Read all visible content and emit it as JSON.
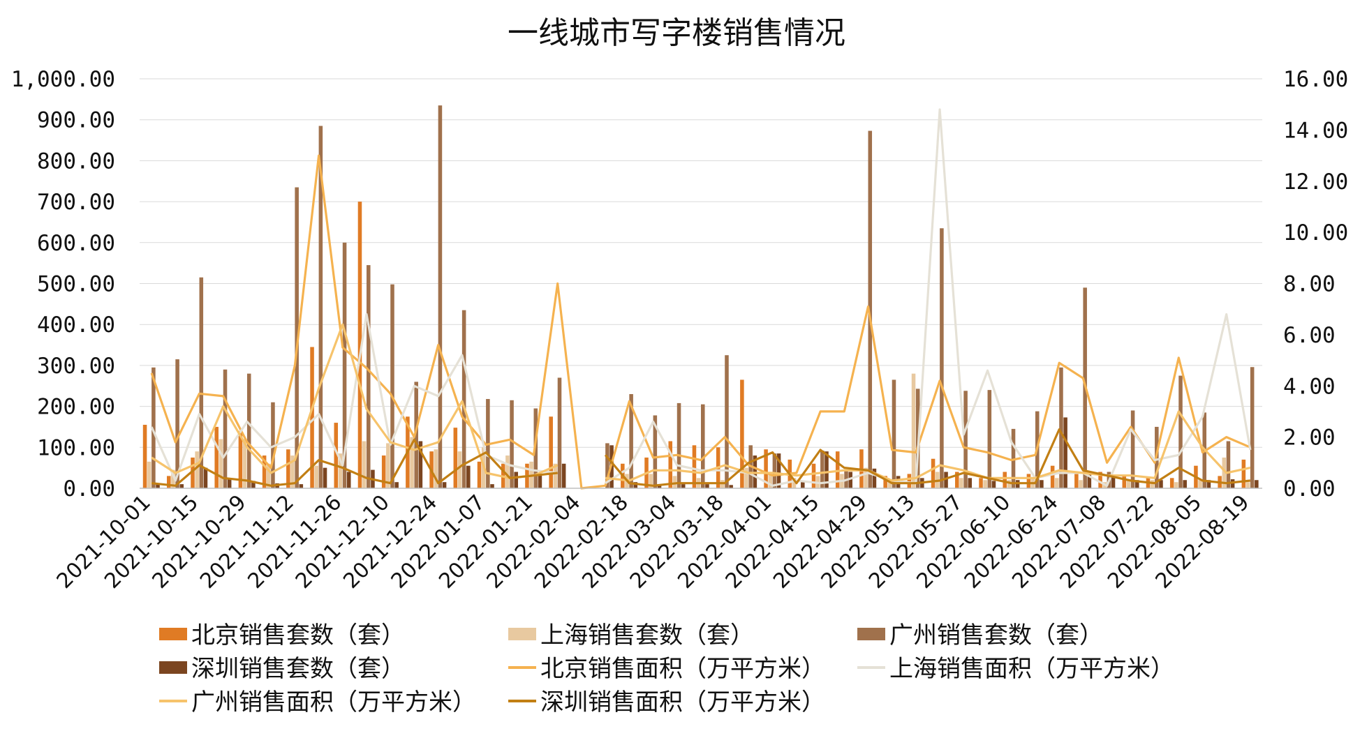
{
  "chart_data": {
    "type": "bar",
    "title": "一线城市写字楼销售情况",
    "dates": [
      "2021-10-01",
      "2021-10-08",
      "2021-10-15",
      "2021-10-22",
      "2021-10-29",
      "2021-11-05",
      "2021-11-12",
      "2021-11-19",
      "2021-11-26",
      "2021-12-03",
      "2021-12-10",
      "2021-12-17",
      "2021-12-24",
      "2021-12-31",
      "2022-01-07",
      "2022-01-14",
      "2022-01-21",
      "2022-01-28",
      "2022-02-04",
      "2022-02-11",
      "2022-02-18",
      "2022-02-25",
      "2022-03-04",
      "2022-03-11",
      "2022-03-18",
      "2022-03-25",
      "2022-04-01",
      "2022-04-08",
      "2022-04-15",
      "2022-04-22",
      "2022-04-29",
      "2022-05-06",
      "2022-05-13",
      "2022-05-20",
      "2022-05-27",
      "2022-06-03",
      "2022-06-10",
      "2022-06-17",
      "2022-06-24",
      "2022-07-01",
      "2022-07-08",
      "2022-07-15",
      "2022-07-22",
      "2022-07-29",
      "2022-08-05",
      "2022-08-12",
      "2022-08-19"
    ],
    "x_tick_labels": [
      "2021-10-01",
      "2021-10-15",
      "2021-10-29",
      "2021-11-12",
      "2021-11-26",
      "2021-12-10",
      "2021-12-24",
      "2022-01-07",
      "2022-01-21",
      "2022-02-04",
      "2022-02-18",
      "2022-03-04",
      "2022-03-18",
      "2022-04-01",
      "2022-04-15",
      "2022-04-29",
      "2022-05-13",
      "2022-05-27",
      "2022-06-10",
      "2022-06-24",
      "2022-07-08",
      "2022-07-22",
      "2022-08-05",
      "2022-08-19"
    ],
    "y_left": {
      "min": 0,
      "max": 1000,
      "ticks": [
        "0.00",
        "100.00",
        "200.00",
        "300.00",
        "400.00",
        "500.00",
        "600.00",
        "700.00",
        "800.00",
        "900.00",
        "1,000.00"
      ]
    },
    "y_right": {
      "min": 0,
      "max": 16,
      "ticks": [
        "0.00",
        "2.00",
        "4.00",
        "6.00",
        "8.00",
        "10.00",
        "12.00",
        "14.00",
        "16.00"
      ]
    },
    "grid": true,
    "legend_position": "bottom",
    "bar_series": [
      {
        "name": "北京销售套数（套）",
        "color": "#E07B24",
        "values": [
          155,
          30,
          75,
          150,
          140,
          80,
          95,
          345,
          160,
          700,
          80,
          175,
          90,
          148,
          65,
          60,
          60,
          175,
          null,
          null,
          60,
          75,
          115,
          105,
          100,
          265,
          95,
          70,
          60,
          90,
          95,
          30,
          35,
          72,
          40,
          25,
          40,
          35,
          55,
          40,
          40,
          30,
          25,
          25,
          55,
          30,
          70
        ]
      },
      {
        "name": "上海销售套数（套）",
        "color": "#E8C9A0",
        "values": [
          65,
          45,
          90,
          120,
          120,
          60,
          80,
          55,
          85,
          115,
          110,
          125,
          95,
          90,
          100,
          80,
          65,
          60,
          null,
          null,
          35,
          35,
          30,
          25,
          20,
          50,
          35,
          25,
          30,
          35,
          50,
          15,
          280,
          40,
          25,
          20,
          20,
          25,
          25,
          20,
          15,
          20,
          20,
          15,
          20,
          75,
          15
        ]
      },
      {
        "name": "广州销售套数（套）",
        "color": "#A0714C",
        "values": [
          295,
          315,
          515,
          290,
          280,
          210,
          735,
          885,
          600,
          545,
          498,
          260,
          935,
          435,
          218,
          215,
          195,
          270,
          null,
          110,
          230,
          178,
          208,
          205,
          325,
          105,
          85,
          0,
          92,
          43,
          873,
          265,
          243,
          635,
          238,
          240,
          145,
          188,
          295,
          490,
          40,
          190,
          150,
          275,
          185,
          115,
          296
        ]
      },
      {
        "name": "深圳销售套数（套）",
        "color": "#7B4520",
        "values": [
          12,
          10,
          50,
          25,
          18,
          12,
          10,
          50,
          40,
          45,
          15,
          115,
          15,
          55,
          10,
          40,
          35,
          60,
          null,
          105,
          15,
          10,
          10,
          10,
          8,
          80,
          85,
          15,
          90,
          40,
          48,
          30,
          25,
          40,
          25,
          18,
          20,
          20,
          173,
          35,
          28,
          20,
          20,
          20,
          20,
          22,
          20
        ]
      }
    ],
    "line_series": [
      {
        "name": "北京销售面积（万平方米）",
        "color": "#F5B24F",
        "values": [
          4.5,
          1.8,
          3.7,
          3.6,
          1.8,
          0.8,
          4.8,
          13.0,
          5.5,
          4.7,
          3.7,
          2.0,
          5.6,
          2.8,
          1.7,
          1.9,
          1.3,
          8.0,
          0.0,
          0.1,
          3.4,
          1.2,
          1.3,
          1.1,
          2.0,
          0.9,
          0.5,
          0.6,
          3.0,
          3.0,
          7.1,
          1.5,
          1.4,
          4.2,
          1.6,
          1.4,
          1.1,
          1.3,
          4.9,
          4.3,
          1.0,
          2.4,
          1.0,
          5.1,
          1.4,
          2.0,
          1.6
        ]
      },
      {
        "name": "上海销售面积（万平方米）",
        "color": "#E5E1D6",
        "values": [
          2.4,
          0.3,
          2.9,
          1.2,
          2.6,
          1.6,
          2.0,
          2.9,
          0.9,
          6.8,
          1.7,
          4.0,
          3.6,
          5.2,
          1.3,
          0.9,
          0.7,
          0.6,
          null,
          0.2,
          0.8,
          2.6,
          0.9,
          0.7,
          0.7,
          0.6,
          0.1,
          0.3,
          0.2,
          0.3,
          0.6,
          0.3,
          0.2,
          14.8,
          2.1,
          4.6,
          1.8,
          0.4,
          0.6,
          0.6,
          0.1,
          2.3,
          1.1,
          1.3,
          2.8,
          6.8,
          1.5
        ]
      },
      {
        "name": "广州销售面积（万平方米）",
        "color": "#F6C36B",
        "values": [
          1.2,
          0.6,
          1.0,
          3.2,
          1.6,
          0.6,
          1.1,
          3.9,
          6.4,
          3.1,
          1.8,
          1.5,
          1.8,
          3.4,
          0.6,
          0.4,
          0.5,
          0.9,
          null,
          0.4,
          0.3,
          0.7,
          0.7,
          0.6,
          0.9,
          0.6,
          0.6,
          0.5,
          0.6,
          0.7,
          0.7,
          0.3,
          0.4,
          0.9,
          0.7,
          0.4,
          0.4,
          0.4,
          0.7,
          0.6,
          0.5,
          0.5,
          0.4,
          3.0,
          1.6,
          0.6,
          0.8
        ]
      },
      {
        "name": "深圳销售面积（万平方米）",
        "color": "#C27F14",
        "values": [
          0.2,
          0.1,
          0.9,
          0.4,
          0.3,
          0.1,
          0.2,
          1.1,
          0.8,
          0.4,
          0.2,
          1.9,
          0.2,
          0.9,
          1.4,
          0.4,
          0.5,
          0.6,
          null,
          1.3,
          0.2,
          0.1,
          0.2,
          0.2,
          0.2,
          1.0,
          1.4,
          0.2,
          1.5,
          0.8,
          0.7,
          0.2,
          0.2,
          0.3,
          0.6,
          0.4,
          0.2,
          0.2,
          2.3,
          0.7,
          0.5,
          0.3,
          0.2,
          0.8,
          0.3,
          0.2,
          0.3
        ]
      }
    ]
  }
}
